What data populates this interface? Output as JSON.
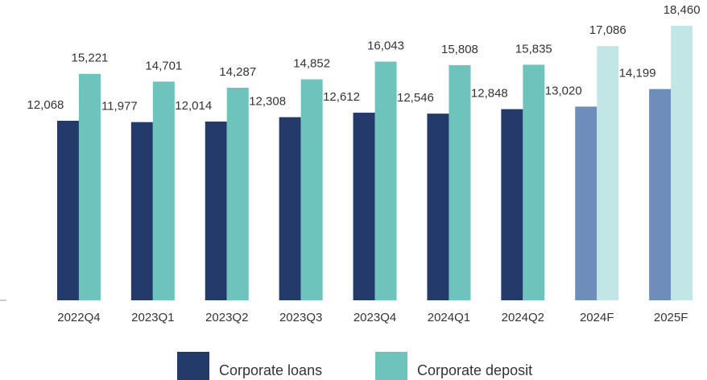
{
  "chart_data": {
    "type": "bar",
    "categories": [
      "2022Q4",
      "2023Q1",
      "2023Q2",
      "2023Q3",
      "2023Q4",
      "2024Q1",
      "2024Q2",
      "2024F",
      "2025F"
    ],
    "series": [
      {
        "name": "Corporate loans",
        "color": "#233a6a",
        "colors": [
          "#233a6a",
          "#233a6a",
          "#233a6a",
          "#233a6a",
          "#233a6a",
          "#233a6a",
          "#233a6a",
          "#6f8dbb",
          "#6f8dbb"
        ],
        "values": [
          12068,
          11977,
          12014,
          12308,
          12612,
          12546,
          12848,
          13020,
          14199
        ],
        "value_labels": [
          "12,068",
          "11,977",
          "12,014",
          "12,308",
          "12,612",
          "12,546",
          "12,848",
          "13,020",
          "14,199"
        ]
      },
      {
        "name": "Corporate deposit",
        "color": "#6ec3bc",
        "colors": [
          "#6ec3bc",
          "#6ec3bc",
          "#6ec3bc",
          "#6ec3bc",
          "#6ec3bc",
          "#6ec3bc",
          "#6ec3bc",
          "#c2e6e5",
          "#c2e6e5"
        ],
        "values": [
          15221,
          14701,
          14287,
          14852,
          16043,
          15808,
          15835,
          17086,
          18460
        ],
        "value_labels": [
          "15,221",
          "14,701",
          "14,287",
          "14,852",
          "16,043",
          "15,808",
          "15,835",
          "17,086",
          "18,460"
        ]
      }
    ],
    "ylim": [
      0,
      20000
    ]
  }
}
